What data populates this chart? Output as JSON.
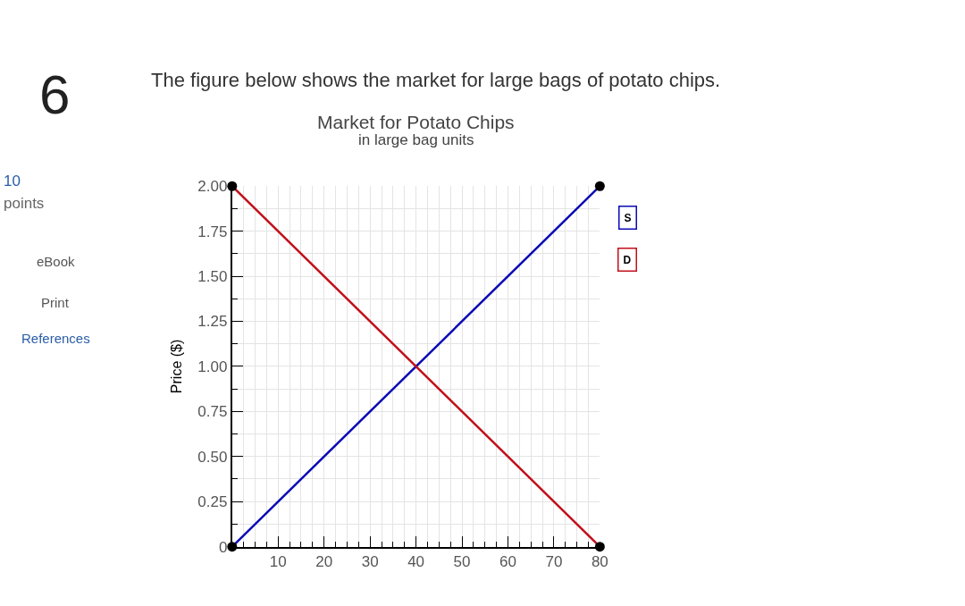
{
  "chart_data": {
    "type": "line",
    "title": "Market for Potato Chips",
    "subtitle": "in large bag units",
    "ylabel": "Price ($)",
    "annotations": [
      "6",
      "The figure below shows the market for large bags of potato chips.",
      "10",
      "points",
      "eBook",
      "Print",
      "References"
    ],
    "series": [
      {
        "name": "S",
        "color": "#0a0ab4",
        "values": [
          0,
          2
        ]
      },
      {
        "name": "D",
        "color": "#c0101a",
        "values": [
          2,
          0
        ]
      }
    ],
    "x": [
      0,
      80
    ],
    "xlim": [
      0,
      80
    ],
    "xticks": [
      {
        "value": 0,
        "label": null
      },
      10,
      20,
      30,
      40,
      50,
      60,
      70,
      80
    ],
    "ylim": [
      0,
      2
    ],
    "yticks": [
      {
        "value": 0,
        "label": "0"
      },
      {
        "value": 0.25,
        "label": "0.25"
      },
      {
        "value": 0.5,
        "label": "0.50"
      },
      {
        "value": 0.75,
        "label": "0.75"
      },
      {
        "value": 1,
        "label": "1.00"
      },
      {
        "value": 1.25,
        "label": "1.25"
      },
      {
        "value": 1.5,
        "label": "1.50"
      },
      {
        "value": 1.75,
        "label": "1.75"
      },
      {
        "value": 2,
        "label": "2.00"
      }
    ],
    "grid": true,
    "marker": "circle",
    "line_style": "solid"
  }
}
